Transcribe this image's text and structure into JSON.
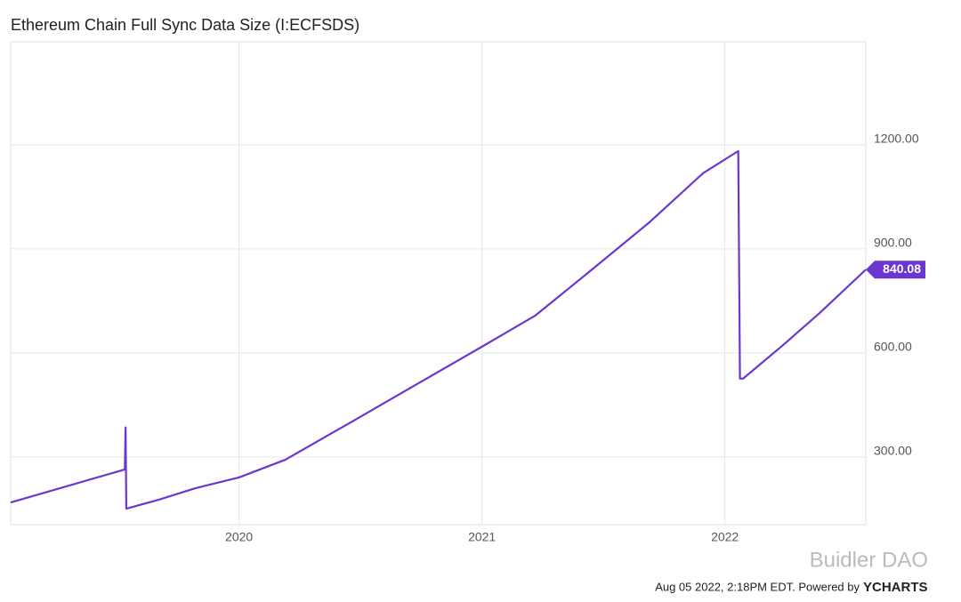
{
  "chart_data": {
    "type": "line",
    "title": "Ethereum Chain Full Sync Data Size (I:ECFSDS)",
    "x": [
      2019.06,
      2019.53,
      2019.533,
      2019.536,
      2019.67,
      2019.82,
      2020.0,
      2020.19,
      2020.48,
      2020.7,
      2021.0,
      2021.22,
      2021.44,
      2021.69,
      2021.91,
      2022.055,
      2022.062,
      2022.075,
      2022.24,
      2022.39,
      2022.58
    ],
    "values": [
      169,
      264,
      385,
      151,
      177,
      210,
      241,
      292,
      408,
      497,
      618,
      708,
      833,
      977,
      1118,
      1182,
      526,
      526,
      623,
      715,
      840.08
    ],
    "color": "#6c36d1",
    "xlim": [
      2019.06,
      2022.58
    ],
    "xticks": [
      2020,
      2021,
      2022
    ],
    "ylim": [
      105,
      1497
    ],
    "yticks": [
      {
        "value": 300,
        "label": "300.00"
      },
      {
        "value": 600,
        "label": "600.00"
      },
      {
        "value": 900,
        "label": "900.00"
      },
      {
        "value": 1200,
        "label": "1200.00"
      }
    ],
    "grid": true,
    "footer": "Aug 05 2022, 2:18PM EDT. Powered by",
    "brand": "YCHARTS",
    "watermark": "Buidler DAO"
  }
}
